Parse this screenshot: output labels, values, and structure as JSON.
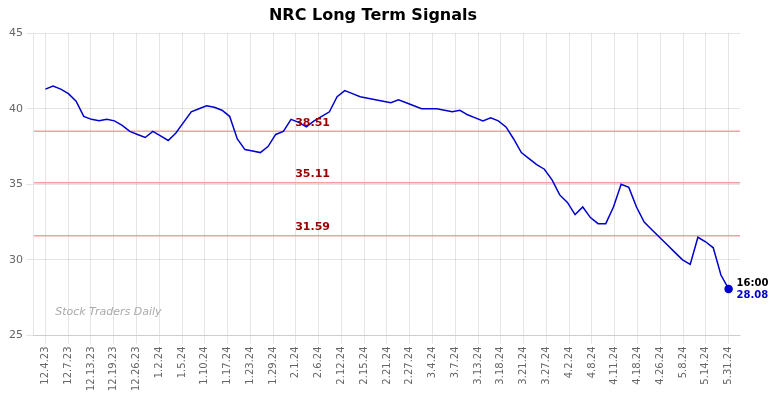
{
  "chart_data": {
    "type": "line",
    "title": "NRC Long Term Signals",
    "color": "#0000cc",
    "x": [
      0,
      0.3371,
      0.6742,
      1.0112,
      1.3483,
      1.6854,
      2.0225,
      2.3596,
      2.6966,
      3.0337,
      3.3708,
      3.7079,
      4.0449,
      4.382,
      4.7191,
      5.0562,
      5.3933,
      5.7303,
      6.0674,
      6.4045,
      6.7416,
      7.0787,
      7.4157,
      7.7528,
      8.0899,
      8.427,
      8.764,
      9.1011,
      9.4382,
      9.7753,
      10.1124,
      10.4494,
      10.7865,
      11.1236,
      11.4607,
      11.7978,
      12.1348,
      12.4719,
      12.809,
      13.1461,
      13.4831,
      13.8202,
      14.1573,
      14.4944,
      14.8315,
      15.1685,
      15.5056,
      15.8427,
      16.1798,
      16.5169,
      16.8539,
      17.191,
      17.5281,
      17.8652,
      18.2022,
      18.5393,
      18.8764,
      19.2135,
      19.5506,
      19.8876,
      20.2247,
      20.5618,
      20.8989,
      21.236,
      21.573,
      21.9101,
      22.2472,
      22.5843,
      22.9213,
      23.2584,
      23.5955,
      23.9326,
      24.2697,
      24.6067,
      24.9438,
      25.2809,
      25.618,
      25.9551,
      26.2921,
      26.6292,
      26.9663,
      27.3034,
      27.6404,
      27.9775,
      28.3146,
      28.6517,
      28.9888,
      29.3258,
      29.6629,
      30
    ],
    "values": [
      41.3,
      41.5,
      41.3,
      41.0,
      40.5,
      39.5,
      39.3,
      39.2,
      39.3,
      39.2,
      38.9,
      38.5,
      38.3,
      38.1,
      38.5,
      38.2,
      37.9,
      38.4,
      39.1,
      39.8,
      40.0,
      40.2,
      40.1,
      39.9,
      39.5,
      38.0,
      37.3,
      37.2,
      37.1,
      37.5,
      38.3,
      38.5,
      39.3,
      39.1,
      38.8,
      39.2,
      39.5,
      39.8,
      40.8,
      41.2,
      41.0,
      40.8,
      40.7,
      40.6,
      40.5,
      40.4,
      40.6,
      40.4,
      40.2,
      40.0,
      40.0,
      40.0,
      39.9,
      39.8,
      39.9,
      39.6,
      39.4,
      39.2,
      39.4,
      39.2,
      38.8,
      38.0,
      37.1,
      36.7,
      36.3,
      36.0,
      35.3,
      34.3,
      33.8,
      33.0,
      33.5,
      32.8,
      32.4,
      32.4,
      33.5,
      35.0,
      34.8,
      33.5,
      32.5,
      32.0,
      31.5,
      31.0,
      30.5,
      30.0,
      29.7,
      31.5,
      31.2,
      30.8,
      29.0,
      28.08
    ],
    "xlim": [
      -0.5,
      30.5
    ],
    "xticks": [
      {
        "value": 0,
        "label": "12.4.23"
      },
      {
        "value": 1,
        "label": "12.7.23"
      },
      {
        "value": 2,
        "label": "12.13.23"
      },
      {
        "value": 3,
        "label": "12.19.23"
      },
      {
        "value": 4,
        "label": "12.26.23"
      },
      {
        "value": 5,
        "label": "1.2.24"
      },
      {
        "value": 6,
        "label": "1.5.24"
      },
      {
        "value": 7,
        "label": "1.10.24"
      },
      {
        "value": 8,
        "label": "1.17.24"
      },
      {
        "value": 9,
        "label": "1.23.24"
      },
      {
        "value": 10,
        "label": "1.29.24"
      },
      {
        "value": 11,
        "label": "2.1.24"
      },
      {
        "value": 12,
        "label": "2.6.24"
      },
      {
        "value": 13,
        "label": "2.12.24"
      },
      {
        "value": 14,
        "label": "2.15.24"
      },
      {
        "value": 15,
        "label": "2.21.24"
      },
      {
        "value": 16,
        "label": "2.27.24"
      },
      {
        "value": 17,
        "label": "3.4.24"
      },
      {
        "value": 18,
        "label": "3.7.24"
      },
      {
        "value": 19,
        "label": "3.13.24"
      },
      {
        "value": 20,
        "label": "3.18.24"
      },
      {
        "value": 21,
        "label": "3.21.24"
      },
      {
        "value": 22,
        "label": "3.27.24"
      },
      {
        "value": 23,
        "label": "4.2.24"
      },
      {
        "value": 24,
        "label": "4.8.24"
      },
      {
        "value": 25,
        "label": "4.11.24"
      },
      {
        "value": 26,
        "label": "4.18.24"
      },
      {
        "value": 27,
        "label": "4.26.24"
      },
      {
        "value": 28,
        "label": "5.8.24"
      },
      {
        "value": 29,
        "label": "5.14.24"
      },
      {
        "value": 30,
        "label": "5.31.24"
      }
    ],
    "ylim": [
      25,
      45
    ],
    "yticks": [
      25,
      30,
      35,
      40,
      45
    ],
    "grid": true,
    "annotations": [
      {
        "text": "38.51",
        "y": 38.51,
        "color": "#990000"
      },
      {
        "text": "35.11",
        "y": 35.11,
        "color": "#990000"
      },
      {
        "text": "31.59",
        "y": 31.59,
        "color": "#990000"
      },
      {
        "text": "16:00",
        "x": 30,
        "y": 28.08
      },
      {
        "text": "28.08",
        "x": 30,
        "y": 28.08,
        "color": "#0000cc"
      },
      {
        "text": "Stock Traders Daily",
        "color": "#aaaaaa"
      }
    ]
  }
}
